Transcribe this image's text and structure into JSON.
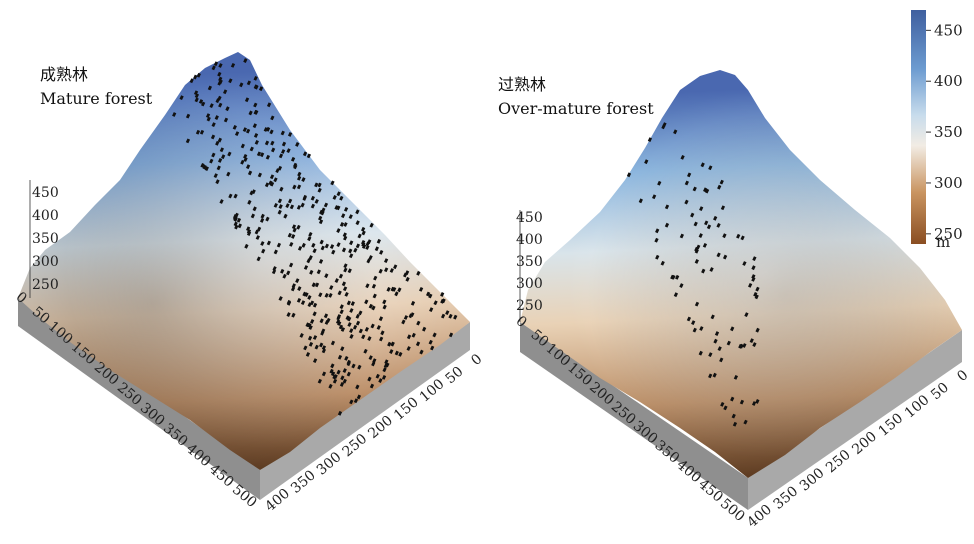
{
  "chart_data": [
    {
      "type": "surface",
      "title_cn": "成熟林",
      "title_en": "Mature forest",
      "z_ticks": [
        450,
        400,
        350,
        300,
        250
      ],
      "y_ticks_left": [
        0,
        50,
        100,
        150,
        200,
        250,
        300,
        350,
        400,
        450,
        500
      ],
      "x_ticks_right": [
        400,
        350,
        300,
        250,
        200,
        150,
        100,
        50,
        0
      ],
      "elevation_range": [
        240,
        470
      ],
      "point_count": 420
    },
    {
      "type": "surface",
      "title_cn": "过熟林",
      "title_en": "Over-mature forest",
      "z_ticks": [
        450,
        400,
        350,
        300,
        250
      ],
      "y_ticks_left": [
        0,
        50,
        100,
        150,
        200,
        250,
        300,
        350,
        400,
        450,
        500
      ],
      "x_ticks_right": [
        400,
        350,
        300,
        250,
        200,
        150,
        100,
        50,
        0
      ],
      "elevation_range": [
        240,
        470
      ],
      "point_count": 95
    }
  ],
  "colorbar": {
    "ticks": [
      450,
      400,
      350,
      300,
      250
    ],
    "unit": "m",
    "colors": [
      "#3f5f9f",
      "#86b6e0",
      "#f2ece4",
      "#c99460",
      "#8a4e22"
    ]
  }
}
